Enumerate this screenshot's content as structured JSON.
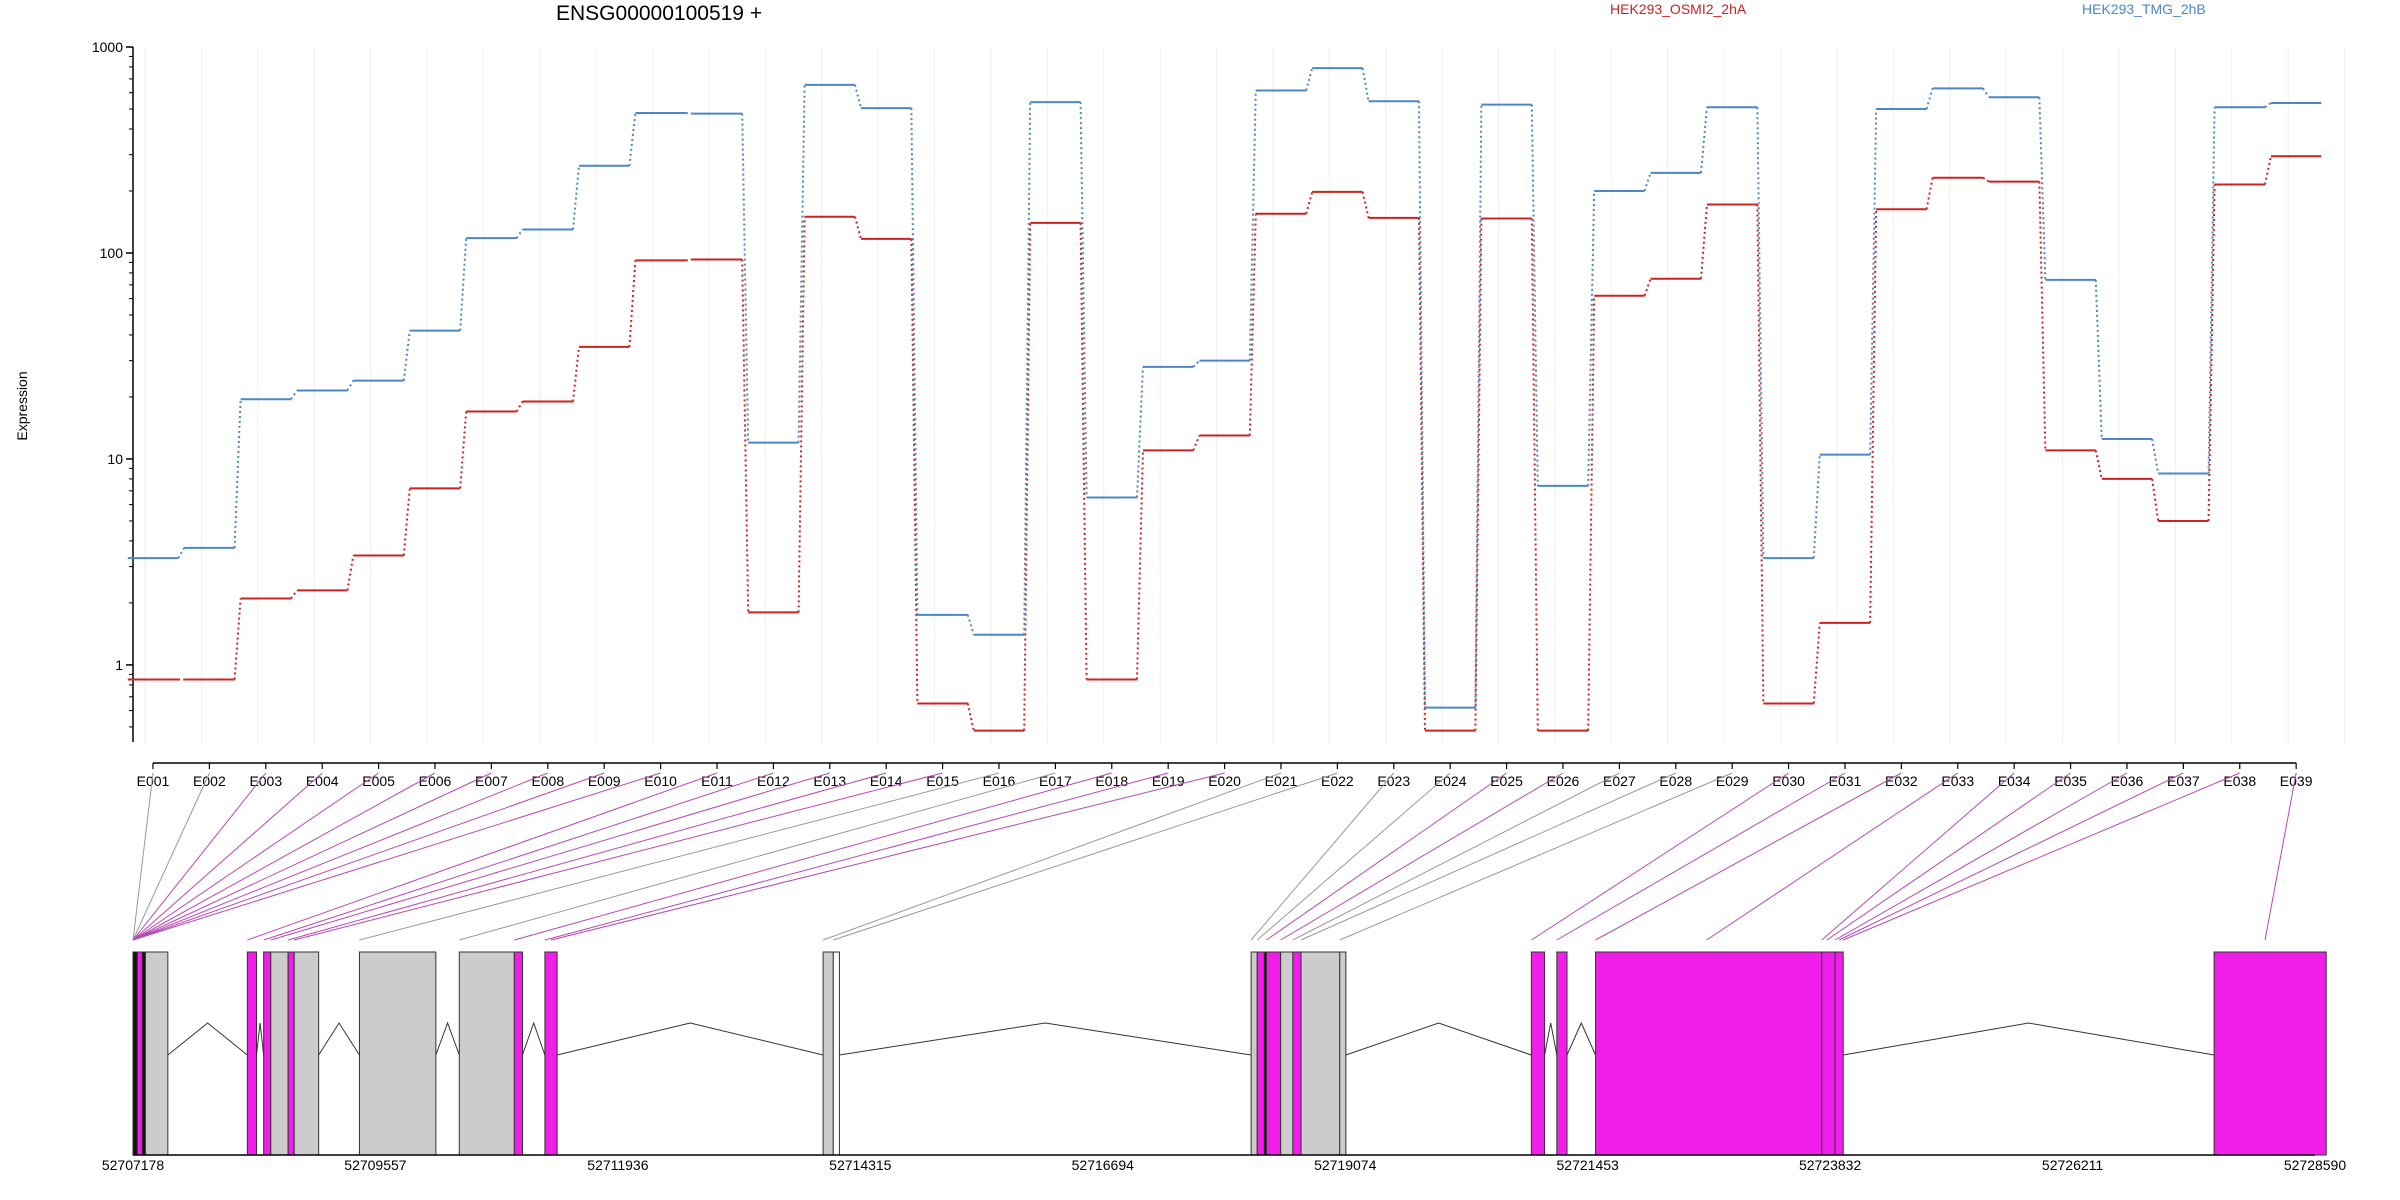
{
  "chart_data": {
    "type": "line",
    "title": "ENSG00000100519 +",
    "xlabel": "",
    "ylabel": "Expression",
    "y_scale": "log",
    "ylim": [
      0.4,
      1000
    ],
    "y_ticks": [
      "1",
      "10",
      "100",
      "1000"
    ],
    "legend_placement": "top",
    "categories": [
      "E001",
      "E002",
      "E003",
      "E004",
      "E005",
      "E006",
      "E007",
      "E008",
      "E009",
      "E010",
      "E011",
      "E012",
      "E013",
      "E014",
      "E015",
      "E016",
      "E017",
      "E018",
      "E019",
      "E020",
      "E021",
      "E022",
      "E023",
      "E024",
      "E025",
      "E026",
      "E027",
      "E028",
      "E029",
      "E030",
      "E031",
      "E032",
      "E033",
      "E034",
      "E035",
      "E036",
      "E037",
      "E038",
      "E039"
    ],
    "series": [
      {
        "name": "HEK293_OSMI2_2hA",
        "color": "#cc2222",
        "values": [
          0.85,
          0.85,
          2.1,
          2.3,
          3.4,
          7.2,
          17,
          19,
          35,
          92,
          93,
          1.8,
          150,
          117,
          0.65,
          0.48,
          140,
          0.85,
          11,
          13,
          155,
          198,
          148,
          0.48,
          147,
          0.48,
          62,
          75,
          172,
          0.65,
          1.6,
          163,
          232,
          222,
          11,
          8,
          5,
          215,
          295
        ]
      },
      {
        "name": "HEK293_TMG_2hB",
        "color": "#4a86c8",
        "values": [
          3.3,
          3.7,
          19.5,
          21.5,
          24,
          42,
          118,
          130,
          265,
          478,
          475,
          12,
          655,
          505,
          1.75,
          1.4,
          540,
          6.5,
          28,
          30,
          615,
          790,
          545,
          0.62,
          525,
          7.4,
          200,
          245,
          510,
          3.3,
          10.5,
          500,
          630,
          570,
          74,
          12.5,
          8.5,
          510,
          535
        ]
      }
    ],
    "genome_coordinates": [
      "52707178",
      "52709557",
      "52711936",
      "52714315",
      "52716694",
      "52719074",
      "52721453",
      "52723832",
      "52726211",
      "52728590"
    ],
    "genome_range": [
      52707178,
      52728590
    ],
    "gene_model": {
      "exons": [
        {
          "start": 52707178,
          "end": 52707220,
          "color": "#111111"
        },
        {
          "start": 52707220,
          "end": 52707270,
          "color": "#f01ee8"
        },
        {
          "start": 52707270,
          "end": 52707300,
          "color": "#111111"
        },
        {
          "start": 52707300,
          "end": 52707520,
          "color": "#cccccc"
        },
        {
          "start": 52708300,
          "end": 52708390,
          "color": "#f01ee8"
        },
        {
          "start": 52708460,
          "end": 52708530,
          "color": "#f01ee8"
        },
        {
          "start": 52708530,
          "end": 52708700,
          "color": "#cccccc"
        },
        {
          "start": 52708700,
          "end": 52708760,
          "color": "#f01ee8"
        },
        {
          "start": 52708760,
          "end": 52709000,
          "color": "#cccccc"
        },
        {
          "start": 52709400,
          "end": 52710150,
          "color": "#cccccc"
        },
        {
          "start": 52710380,
          "end": 52710920,
          "color": "#cccccc"
        },
        {
          "start": 52710920,
          "end": 52711000,
          "color": "#f01ee8"
        },
        {
          "start": 52711220,
          "end": 52711340,
          "color": "#f01ee8"
        },
        {
          "start": 52713950,
          "end": 52714050,
          "color": "#cccccc"
        },
        {
          "start": 52714050,
          "end": 52714110,
          "color": "#ffffff"
        },
        {
          "start": 52718150,
          "end": 52718210,
          "color": "#cccccc"
        },
        {
          "start": 52718210,
          "end": 52718280,
          "color": "#f01ee8"
        },
        {
          "start": 52718280,
          "end": 52718300,
          "color": "#111111"
        },
        {
          "start": 52718300,
          "end": 52718440,
          "color": "#f01ee8"
        },
        {
          "start": 52718440,
          "end": 52718560,
          "color": "#cccccc"
        },
        {
          "start": 52718560,
          "end": 52718640,
          "color": "#f01ee8"
        },
        {
          "start": 52718640,
          "end": 52719020,
          "color": "#cccccc"
        },
        {
          "start": 52719020,
          "end": 52719080,
          "color": "#cccccc"
        },
        {
          "start": 52720900,
          "end": 52721030,
          "color": "#f01ee8"
        },
        {
          "start": 52721150,
          "end": 52721250,
          "color": "#f01ee8"
        },
        {
          "start": 52721530,
          "end": 52723750,
          "color": "#f01ee8"
        },
        {
          "start": 52723750,
          "end": 52723880,
          "color": "#f01ee8"
        },
        {
          "start": 52723880,
          "end": 52723960,
          "color": "#f01ee8"
        },
        {
          "start": 52727600,
          "end": 52728700,
          "color": "#f01ee8"
        }
      ],
      "introns": [
        [
          52707520,
          52708300
        ],
        [
          52708390,
          52708460
        ],
        [
          52709000,
          52709400
        ],
        [
          52710150,
          52710380
        ],
        [
          52711000,
          52711220
        ],
        [
          52711340,
          52713950
        ],
        [
          52714110,
          52718150
        ],
        [
          52719080,
          52720900
        ],
        [
          52721030,
          52721150
        ],
        [
          52721250,
          52721530
        ],
        [
          52723960,
          52727600
        ]
      ],
      "exon_links": [
        {
          "bin": "E001",
          "target": 52707178,
          "color": "#999999"
        },
        {
          "bin": "E002",
          "target": 52707178,
          "color": "#999999"
        },
        {
          "bin": "E003",
          "target": 52707178,
          "color": "#b548b5"
        },
        {
          "bin": "E004",
          "target": 52707178,
          "color": "#b548b5"
        },
        {
          "bin": "E005",
          "target": 52707178,
          "color": "#b548b5"
        },
        {
          "bin": "E006",
          "target": 52707178,
          "color": "#b548b5"
        },
        {
          "bin": "E007",
          "target": 52707178,
          "color": "#b548b5"
        },
        {
          "bin": "E008",
          "target": 52707178,
          "color": "#b548b5"
        },
        {
          "bin": "E009",
          "target": 52707178,
          "color": "#b548b5"
        },
        {
          "bin": "E010",
          "target": 52707178,
          "color": "#b548b5"
        },
        {
          "bin": "E011",
          "target": 52708300,
          "color": "#b548b5"
        },
        {
          "bin": "E012",
          "target": 52708460,
          "color": "#b548b5"
        },
        {
          "bin": "E013",
          "target": 52708530,
          "color": "#b548b5"
        },
        {
          "bin": "E014",
          "target": 52708700,
          "color": "#b548b5"
        },
        {
          "bin": "E015",
          "target": 52708760,
          "color": "#b548b5"
        },
        {
          "bin": "E016",
          "target": 52709400,
          "color": "#999999"
        },
        {
          "bin": "E017",
          "target": 52710380,
          "color": "#999999"
        },
        {
          "bin": "E018",
          "target": 52710920,
          "color": "#b548b5"
        },
        {
          "bin": "E019",
          "target": 52711220,
          "color": "#b548b5"
        },
        {
          "bin": "E020",
          "target": 52711280,
          "color": "#b548b5"
        },
        {
          "bin": "E021",
          "target": 52713950,
          "color": "#999999"
        },
        {
          "bin": "E022",
          "target": 52714050,
          "color": "#999999"
        },
        {
          "bin": "E023",
          "target": 52718150,
          "color": "#999999"
        },
        {
          "bin": "E024",
          "target": 52718210,
          "color": "#999999"
        },
        {
          "bin": "E025",
          "target": 52718300,
          "color": "#b548b5"
        },
        {
          "bin": "E026",
          "target": 52718440,
          "color": "#b548b5"
        },
        {
          "bin": "E027",
          "target": 52718560,
          "color": "#999999"
        },
        {
          "bin": "E028",
          "target": 52718640,
          "color": "#999999"
        },
        {
          "bin": "E029",
          "target": 52719020,
          "color": "#999999"
        },
        {
          "bin": "E030",
          "target": 52720900,
          "color": "#b548b5"
        },
        {
          "bin": "E031",
          "target": 52721150,
          "color": "#b548b5"
        },
        {
          "bin": "E032",
          "target": 52721530,
          "color": "#b548b5"
        },
        {
          "bin": "E033",
          "target": 52722620,
          "color": "#b548b5"
        },
        {
          "bin": "E034",
          "target": 52723750,
          "color": "#b548b5"
        },
        {
          "bin": "E035",
          "target": 52723800,
          "color": "#b548b5"
        },
        {
          "bin": "E036",
          "target": 52723880,
          "color": "#b548b5"
        },
        {
          "bin": "E037",
          "target": 52723920,
          "color": "#b548b5"
        },
        {
          "bin": "E038",
          "target": 52723960,
          "color": "#b548b5"
        },
        {
          "bin": "E039",
          "target": 52728100,
          "color": "#b548b5"
        }
      ]
    }
  }
}
